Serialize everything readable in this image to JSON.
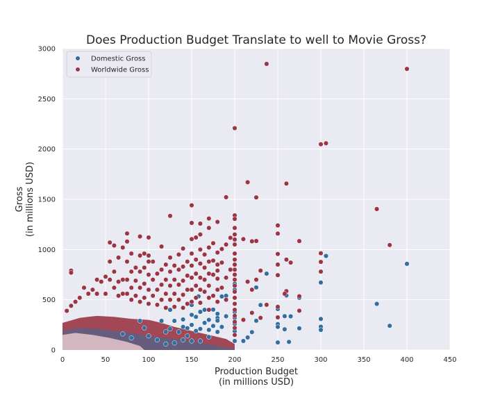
{
  "chart_data": {
    "type": "scatter",
    "title": "Does Production Budget Translate to well to Movie Gross?",
    "xlabel_line1": "Production Budget",
    "xlabel_line2": "(in millions USD)",
    "ylabel_line1": "Gross",
    "ylabel_line2": "(in millions USD)",
    "xlim": [
      0,
      450
    ],
    "ylim": [
      0,
      3000
    ],
    "xticks": [
      0,
      50,
      100,
      150,
      200,
      250,
      300,
      350,
      400,
      450
    ],
    "yticks": [
      0,
      500,
      1000,
      1500,
      2000,
      2500,
      3000
    ],
    "grid": true,
    "legend_position": "top-left",
    "background_color": "#eaeaf2",
    "series": [
      {
        "name": "Domestic Gross",
        "color": "#336ea0",
        "points": [
          [
            400,
            858
          ],
          [
            380,
            241
          ],
          [
            365,
            459
          ],
          [
            306,
            936
          ],
          [
            300,
            672
          ],
          [
            300,
            309
          ],
          [
            300,
            232
          ],
          [
            300,
            200
          ],
          [
            275,
            520
          ],
          [
            275,
            216
          ],
          [
            265,
            335
          ],
          [
            263,
            81
          ],
          [
            260,
            543
          ],
          [
            258,
            337
          ],
          [
            258,
            206
          ],
          [
            250,
            408
          ],
          [
            250,
            258
          ],
          [
            250,
            230
          ],
          [
            250,
            75
          ],
          [
            237,
            760
          ],
          [
            230,
            448
          ],
          [
            225,
            623
          ],
          [
            225,
            291
          ],
          [
            220,
            178
          ],
          [
            215,
            125
          ],
          [
            210,
            90
          ],
          [
            200,
            659
          ],
          [
            200,
            600
          ],
          [
            200,
            458
          ],
          [
            200,
            380
          ],
          [
            200,
            320
          ],
          [
            200,
            260
          ],
          [
            200,
            187
          ],
          [
            200,
            90
          ],
          [
            190,
            540
          ],
          [
            190,
            336
          ],
          [
            185,
            533
          ],
          [
            185,
            230
          ],
          [
            180,
            360
          ],
          [
            180,
            318
          ],
          [
            180,
            292
          ],
          [
            180,
            180
          ],
          [
            175,
            402
          ],
          [
            175,
            240
          ],
          [
            170,
            300
          ],
          [
            170,
            200
          ],
          [
            170,
            130
          ],
          [
            165,
            400
          ],
          [
            165,
            270
          ],
          [
            160,
            380
          ],
          [
            160,
            210
          ],
          [
            160,
            90
          ],
          [
            158,
            534
          ],
          [
            155,
            330
          ],
          [
            155,
            190
          ],
          [
            150,
            448
          ],
          [
            150,
            350
          ],
          [
            150,
            250
          ],
          [
            150,
            90
          ],
          [
            145,
            217
          ],
          [
            145,
            140
          ],
          [
            140,
            304
          ],
          [
            140,
            230
          ],
          [
            140,
            100
          ],
          [
            135,
            180
          ],
          [
            130,
            290
          ],
          [
            130,
            70
          ],
          [
            125,
            400
          ],
          [
            125,
            210
          ],
          [
            120,
            180
          ],
          [
            120,
            60
          ],
          [
            115,
            290
          ],
          [
            110,
            100
          ],
          [
            100,
            140
          ],
          [
            95,
            220
          ],
          [
            90,
            290
          ],
          [
            80,
            120
          ],
          [
            70,
            160
          ]
        ]
      },
      {
        "name": "Worldwide Gross",
        "color": "#9a3545",
        "points": [
          [
            400,
            2798
          ],
          [
            380,
            1045
          ],
          [
            365,
            1403
          ],
          [
            306,
            2058
          ],
          [
            300,
            2048
          ],
          [
            300,
            963
          ],
          [
            300,
            877
          ],
          [
            300,
            780
          ],
          [
            275,
            1084
          ],
          [
            275,
            535
          ],
          [
            275,
            391
          ],
          [
            265,
            870
          ],
          [
            260,
            1657
          ],
          [
            260,
            900
          ],
          [
            260,
            586
          ],
          [
            258,
            560
          ],
          [
            250,
            1240
          ],
          [
            250,
            1159
          ],
          [
            250,
            956
          ],
          [
            250,
            850
          ],
          [
            250,
            745
          ],
          [
            250,
            430
          ],
          [
            250,
            325
          ],
          [
            237,
            2848
          ],
          [
            237,
            450
          ],
          [
            230,
            790
          ],
          [
            230,
            320
          ],
          [
            225,
            1519
          ],
          [
            225,
            1085
          ],
          [
            225,
            700
          ],
          [
            220,
            1082
          ],
          [
            220,
            600
          ],
          [
            220,
            370
          ],
          [
            215,
            1670
          ],
          [
            215,
            680
          ],
          [
            210,
            1104
          ],
          [
            210,
            300
          ],
          [
            200,
            2208
          ],
          [
            200,
            1340
          ],
          [
            200,
            1305
          ],
          [
            200,
            1215
          ],
          [
            200,
            1150
          ],
          [
            200,
            1100
          ],
          [
            200,
            1050
          ],
          [
            200,
            960
          ],
          [
            200,
            900
          ],
          [
            200,
            850
          ],
          [
            200,
            800
          ],
          [
            200,
            750
          ],
          [
            200,
            700
          ],
          [
            200,
            640
          ],
          [
            200,
            580
          ],
          [
            200,
            520
          ],
          [
            200,
            460
          ],
          [
            200,
            400
          ],
          [
            200,
            340
          ],
          [
            200,
            280
          ],
          [
            200,
            220
          ],
          [
            200,
            150
          ],
          [
            195,
            1117
          ],
          [
            195,
            800
          ],
          [
            190,
            1521
          ],
          [
            190,
            1050
          ],
          [
            190,
            720
          ],
          [
            190,
            500
          ],
          [
            185,
            1005
          ],
          [
            185,
            870
          ],
          [
            185,
            620
          ],
          [
            180,
            1275
          ],
          [
            180,
            970
          ],
          [
            180,
            850
          ],
          [
            180,
            790
          ],
          [
            180,
            710
          ],
          [
            180,
            600
          ],
          [
            180,
            480
          ],
          [
            175,
            1063
          ],
          [
            175,
            890
          ],
          [
            175,
            750
          ],
          [
            175,
            540
          ],
          [
            170,
            1309
          ],
          [
            170,
            1215
          ],
          [
            170,
            1020
          ],
          [
            170,
            880
          ],
          [
            170,
            760
          ],
          [
            170,
            640
          ],
          [
            170,
            520
          ],
          [
            170,
            400
          ],
          [
            165,
            950
          ],
          [
            165,
            820
          ],
          [
            165,
            700
          ],
          [
            165,
            580
          ],
          [
            160,
            1258
          ],
          [
            160,
            1150
          ],
          [
            160,
            1000
          ],
          [
            160,
            860
          ],
          [
            160,
            720
          ],
          [
            160,
            600
          ],
          [
            160,
            470
          ],
          [
            155,
            1120
          ],
          [
            155,
            900
          ],
          [
            155,
            760
          ],
          [
            155,
            640
          ],
          [
            155,
            520
          ],
          [
            150,
            1440
          ],
          [
            150,
            1265
          ],
          [
            150,
            1104
          ],
          [
            150,
            960
          ],
          [
            150,
            840
          ],
          [
            150,
            720
          ],
          [
            150,
            600
          ],
          [
            150,
            480
          ],
          [
            145,
            880
          ],
          [
            145,
            740
          ],
          [
            145,
            600
          ],
          [
            145,
            460
          ],
          [
            140,
            1010
          ],
          [
            140,
            830
          ],
          [
            140,
            690
          ],
          [
            140,
            550
          ],
          [
            140,
            420
          ],
          [
            135,
            950
          ],
          [
            135,
            800
          ],
          [
            135,
            650
          ],
          [
            135,
            500
          ],
          [
            130,
            840
          ],
          [
            130,
            700
          ],
          [
            130,
            560
          ],
          [
            130,
            430
          ],
          [
            125,
            1335
          ],
          [
            125,
            920
          ],
          [
            125,
            780
          ],
          [
            125,
            640
          ],
          [
            125,
            500
          ],
          [
            120,
            850
          ],
          [
            120,
            700
          ],
          [
            120,
            560
          ],
          [
            120,
            420
          ],
          [
            115,
            1030
          ],
          [
            115,
            800
          ],
          [
            115,
            650
          ],
          [
            115,
            500
          ],
          [
            110,
            760
          ],
          [
            110,
            600
          ],
          [
            110,
            450
          ],
          [
            105,
            880
          ],
          [
            105,
            700
          ],
          [
            105,
            540
          ],
          [
            100,
            1120
          ],
          [
            100,
            940
          ],
          [
            100,
            880
          ],
          [
            100,
            750
          ],
          [
            100,
            600
          ],
          [
            100,
            460
          ],
          [
            95,
            960
          ],
          [
            95,
            820
          ],
          [
            95,
            660
          ],
          [
            95,
            520
          ],
          [
            90,
            1130
          ],
          [
            90,
            940
          ],
          [
            90,
            780
          ],
          [
            90,
            620
          ],
          [
            90,
            480
          ],
          [
            85,
            820
          ],
          [
            85,
            690
          ],
          [
            85,
            540
          ],
          [
            80,
            960
          ],
          [
            80,
            780
          ],
          [
            80,
            620
          ],
          [
            80,
            500
          ],
          [
            75,
            1160
          ],
          [
            75,
            1080
          ],
          [
            75,
            880
          ],
          [
            75,
            700
          ],
          [
            75,
            560
          ],
          [
            70,
            1020
          ],
          [
            70,
            700
          ],
          [
            70,
            560
          ],
          [
            65,
            920
          ],
          [
            65,
            680
          ],
          [
            65,
            540
          ],
          [
            60,
            1040
          ],
          [
            60,
            780
          ],
          [
            60,
            620
          ],
          [
            55,
            1070
          ],
          [
            55,
            880
          ],
          [
            55,
            700
          ],
          [
            50,
            730
          ],
          [
            50,
            560
          ],
          [
            45,
            680
          ],
          [
            40,
            700
          ],
          [
            40,
            560
          ],
          [
            35,
            600
          ],
          [
            30,
            560
          ],
          [
            25,
            620
          ],
          [
            20,
            520
          ],
          [
            15,
            480
          ],
          [
            10,
            790
          ],
          [
            10,
            770
          ],
          [
            10,
            440
          ],
          [
            5,
            390
          ]
        ]
      }
    ]
  }
}
